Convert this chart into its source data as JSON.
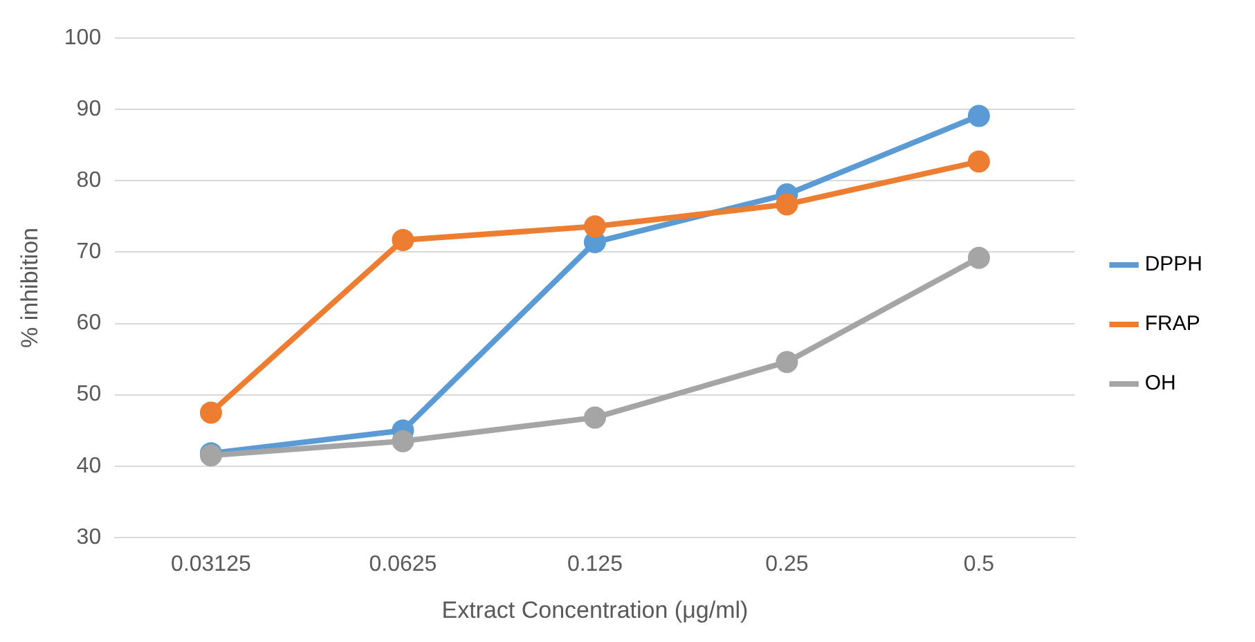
{
  "chart_data": {
    "type": "line",
    "xlabel": "Extract Concentration (μg/ml)",
    "ylabel": "% inhibition",
    "categories": [
      "0.03125",
      "0.0625",
      "0.125",
      "0.25",
      "0.5"
    ],
    "series": [
      {
        "name": "DPPH",
        "color": "#5b9bd5",
        "values": [
          41.8,
          45.0,
          71.4,
          78.1,
          89.1
        ]
      },
      {
        "name": "FRAP",
        "color": "#ed7d31",
        "values": [
          47.5,
          71.7,
          73.6,
          76.7,
          82.7
        ]
      },
      {
        "name": "OH",
        "color": "#a5a5a5",
        "values": [
          41.5,
          43.5,
          46.8,
          54.6,
          69.2
        ]
      }
    ],
    "ylim": [
      30,
      100
    ],
    "yticks": [
      30,
      40,
      50,
      60,
      70,
      80,
      90,
      100
    ],
    "grid": "y",
    "legend": "right",
    "marker": "circle",
    "line_style": "solid"
  }
}
